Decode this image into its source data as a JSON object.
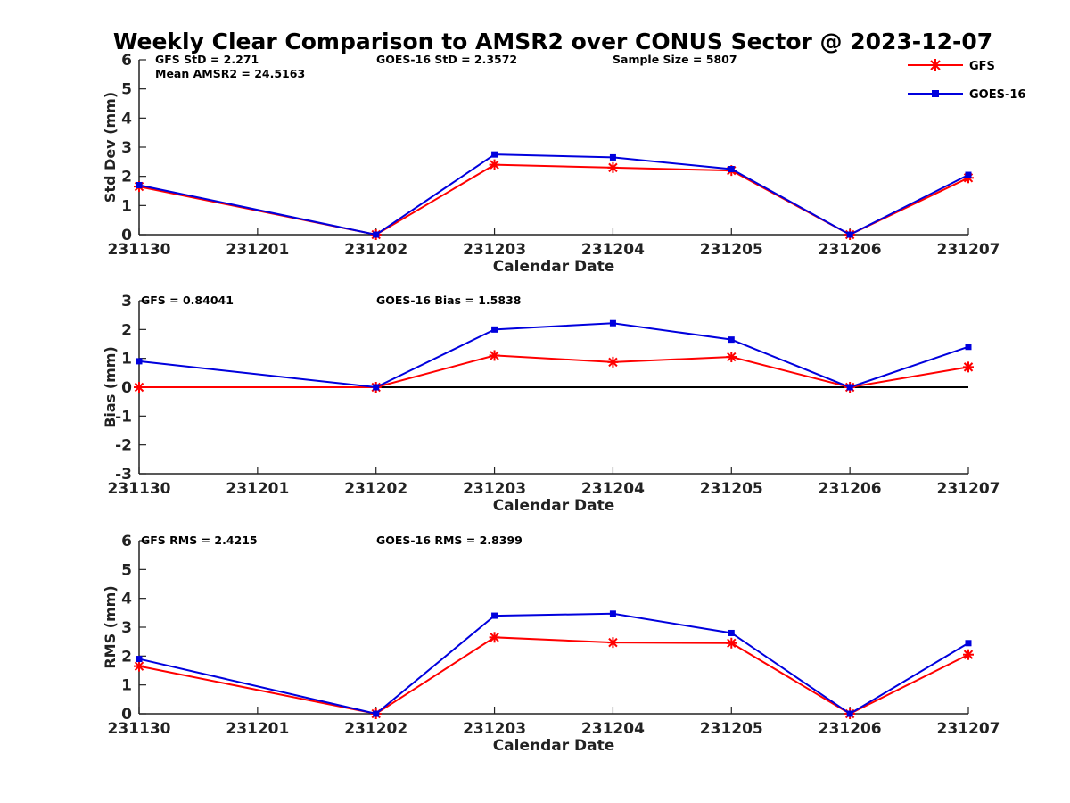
{
  "title": "Weekly Clear Comparison to AMSR2 over CONUS Sector @ 2023-12-07",
  "legend": {
    "placement": "top-right",
    "items": [
      {
        "name": "GFS",
        "color": "#ff0000",
        "marker": "asterisk"
      },
      {
        "name": "GOES-16",
        "color": "#0000dd",
        "marker": "square"
      }
    ]
  },
  "chart_data": [
    {
      "type": "line",
      "categories": [
        "231130",
        "231201",
        "231202",
        "231203",
        "231204",
        "231205",
        "231206",
        "231207"
      ],
      "xlabel": "Calendar Date",
      "ylabel": "Std Dev (mm)",
      "ylim": [
        0,
        6
      ],
      "yticks": [
        "0",
        "1",
        "2",
        "3",
        "4",
        "5",
        "6"
      ],
      "annotations": [
        "GFS StD = 2.271",
        "GOES-16 StD = 2.3572",
        "Sample Size = 5807",
        "Mean AMSR2 = 24.5163"
      ],
      "series": [
        {
          "name": "GFS",
          "color": "#ff0000",
          "values": [
            1.65,
            null,
            0,
            2.4,
            2.3,
            2.2,
            0,
            1.95
          ]
        },
        {
          "name": "GOES-16",
          "color": "#0000dd",
          "values": [
            1.7,
            null,
            0,
            2.75,
            2.65,
            2.25,
            0,
            2.05
          ]
        }
      ],
      "zero_line": false
    },
    {
      "type": "line",
      "categories": [
        "231130",
        "231201",
        "231202",
        "231203",
        "231204",
        "231205",
        "231206",
        "231207"
      ],
      "xlabel": "Calendar Date",
      "ylabel": "Bias (mm)",
      "ylim": [
        -3,
        3
      ],
      "yticks": [
        "-3",
        "-2",
        "-1",
        "0",
        "1",
        "2",
        "3"
      ],
      "annotations": [
        "GFS = 0.84041",
        "GOES-16 Bias  = 1.5838"
      ],
      "series": [
        {
          "name": "GFS",
          "color": "#ff0000",
          "values": [
            0,
            null,
            0,
            1.1,
            0.87,
            1.05,
            0,
            0.7
          ]
        },
        {
          "name": "GOES-16",
          "color": "#0000dd",
          "values": [
            0.9,
            null,
            0,
            2.0,
            2.22,
            1.65,
            0,
            1.4
          ]
        }
      ],
      "zero_line": true
    },
    {
      "type": "line",
      "categories": [
        "231130",
        "231201",
        "231202",
        "231203",
        "231204",
        "231205",
        "231206",
        "231207"
      ],
      "xlabel": "Calendar Date",
      "ylabel": "RMS (mm)",
      "ylim": [
        0,
        6
      ],
      "yticks": [
        "0",
        "1",
        "2",
        "3",
        "4",
        "5",
        "6"
      ],
      "annotations": [
        "GFS RMS = 2.4215",
        "GOES-16 RMS = 2.8399"
      ],
      "series": [
        {
          "name": "GFS",
          "color": "#ff0000",
          "values": [
            1.65,
            null,
            0,
            2.65,
            2.47,
            2.45,
            0,
            2.05
          ]
        },
        {
          "name": "GOES-16",
          "color": "#0000dd",
          "values": [
            1.9,
            null,
            0,
            3.4,
            3.47,
            2.8,
            0,
            2.45
          ]
        }
      ],
      "zero_line": false
    }
  ]
}
